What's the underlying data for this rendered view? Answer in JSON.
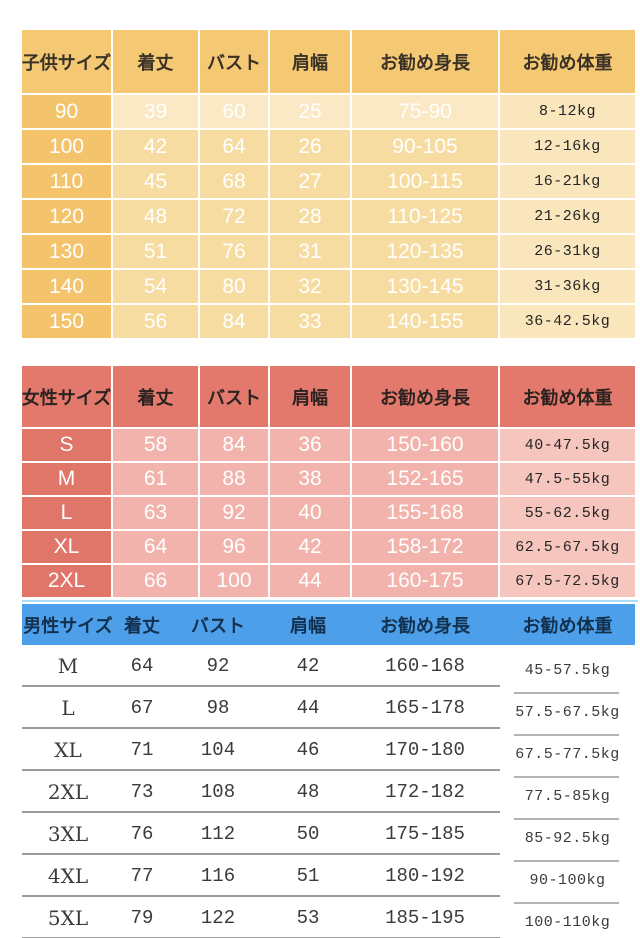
{
  "chart_data": [
    {
      "type": "table",
      "name": "kids-sizes",
      "header": [
        "子供サイズ",
        "着丈",
        "バスト",
        "肩幅",
        "お勧め身長",
        "お勧め体重"
      ],
      "rows": [
        [
          "90",
          "39",
          "60",
          "25",
          "75-90",
          "8-12kg"
        ],
        [
          "100",
          "42",
          "64",
          "26",
          "90-105",
          "12-16kg"
        ],
        [
          "110",
          "45",
          "68",
          "27",
          "100-115",
          "16-21kg"
        ],
        [
          "120",
          "48",
          "72",
          "28",
          "110-125",
          "21-26kg"
        ],
        [
          "130",
          "51",
          "76",
          "31",
          "120-135",
          "26-31kg"
        ],
        [
          "140",
          "54",
          "80",
          "32",
          "130-145",
          "31-36kg"
        ],
        [
          "150",
          "56",
          "84",
          "33",
          "140-155",
          "36-42.5kg"
        ]
      ]
    },
    {
      "type": "table",
      "name": "women-sizes",
      "header": [
        "女性サイズ",
        "着丈",
        "バスト",
        "肩幅",
        "お勧め身長",
        "お勧め体重"
      ],
      "rows": [
        [
          "S",
          "58",
          "84",
          "36",
          "150-160",
          "40-47.5kg"
        ],
        [
          "M",
          "61",
          "88",
          "38",
          "152-165",
          "47.5-55kg"
        ],
        [
          "L",
          "63",
          "92",
          "40",
          "155-168",
          "55-62.5kg"
        ],
        [
          "XL",
          "64",
          "96",
          "42",
          "158-172",
          "62.5-67.5kg"
        ],
        [
          "2XL",
          "66",
          "100",
          "44",
          "160-175",
          "67.5-72.5kg"
        ]
      ]
    },
    {
      "type": "table",
      "name": "men-sizes",
      "header": [
        "男性サイズ",
        "着丈",
        "バスト",
        "肩幅",
        "お勧め身長",
        "お勧め体重"
      ],
      "rows": [
        [
          "M",
          "64",
          "92",
          "42",
          "160-168",
          "45-57.5kg"
        ],
        [
          "L",
          "67",
          "98",
          "44",
          "165-178",
          "57.5-67.5kg"
        ],
        [
          "XL",
          "71",
          "104",
          "46",
          "170-180",
          "67.5-77.5kg"
        ],
        [
          "2XL",
          "73",
          "108",
          "48",
          "172-182",
          "77.5-85kg"
        ],
        [
          "3XL",
          "76",
          "112",
          "50",
          "175-185",
          "85-92.5kg"
        ],
        [
          "4XL",
          "77",
          "116",
          "51",
          "180-192",
          "90-100kg"
        ],
        [
          "5XL",
          "79",
          "122",
          "53",
          "185-195",
          "100-110kg"
        ]
      ]
    }
  ],
  "colors": {
    "kids_header": "#f5c873",
    "kids_size_col": "#f3c46c",
    "kids_row": "#f6dca1",
    "kids_first_row": "#fae9c4",
    "kids_weight_col": "#f9e6bc",
    "women_header": "#e3796d",
    "women_size_col": "#e0756a",
    "women_row": "#f1b3ab",
    "women_weight_col": "#f5c5be",
    "men_header": "#4c9fe8",
    "men_topline": "#a8ddf8",
    "row_separator": "#9b9b9b",
    "cell_text_light": "#ffffff",
    "cell_text_dark": "#252525"
  }
}
